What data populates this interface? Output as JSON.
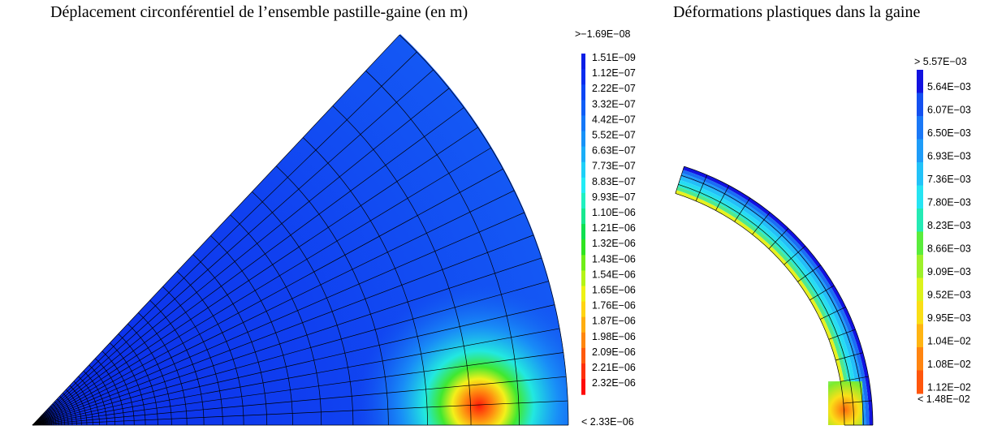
{
  "left_panel": {
    "title": "Déplacement circonférentiel de l’ensemble pastille-gaine (en m)",
    "legend": {
      "over_label": ">−1.69E−08",
      "under_label": "< 2.33E−06",
      "entries": [
        {
          "label": "1.51E−09",
          "color": "#0a1ee6"
        },
        {
          "label": "1.12E−07",
          "color": "#0a2df0"
        },
        {
          "label": "2.22E−07",
          "color": "#0d46f5"
        },
        {
          "label": "3.32E−07",
          "color": "#105ef7"
        },
        {
          "label": "4.42E−07",
          "color": "#1478f8"
        },
        {
          "label": "5.52E−07",
          "color": "#1792f8"
        },
        {
          "label": "6.63E−07",
          "color": "#1aaef8"
        },
        {
          "label": "7.73E−07",
          "color": "#1ed0f8"
        },
        {
          "label": "8.83E−07",
          "color": "#22ecf6"
        },
        {
          "label": "9.93E−07",
          "color": "#20f0c0"
        },
        {
          "label": "1.10E−06",
          "color": "#18e890"
        },
        {
          "label": "1.21E−06",
          "color": "#10e050"
        },
        {
          "label": "1.32E−06",
          "color": "#30e420"
        },
        {
          "label": "1.43E−06",
          "color": "#70ee18"
        },
        {
          "label": "1.54E−06",
          "color": "#b4f416"
        },
        {
          "label": "1.65E−06",
          "color": "#eef214"
        },
        {
          "label": "1.76E−06",
          "color": "#ffd412"
        },
        {
          "label": "1.87E−06",
          "color": "#ffae10"
        },
        {
          "label": "1.98E−06",
          "color": "#ff860e"
        },
        {
          "label": "2.09E−06",
          "color": "#ff5a0c"
        },
        {
          "label": "2.21E−06",
          "color": "#ff300a"
        },
        {
          "label": "2.32E−06",
          "color": "#ff0a08"
        }
      ]
    }
  },
  "right_panel": {
    "title": "Déformations plastiques dans la gaine",
    "legend": {
      "over_label": "> 5.57E−03",
      "under_label": "< 1.48E−02",
      "entries": [
        {
          "label": "5.64E−03",
          "color": "#1212e0"
        },
        {
          "label": "6.07E−03",
          "color": "#1450f0"
        },
        {
          "label": "6.50E−03",
          "color": "#1a78f6"
        },
        {
          "label": "6.93E−03",
          "color": "#1e9cf8"
        },
        {
          "label": "7.36E−03",
          "color": "#22c2f8"
        },
        {
          "label": "7.80E−03",
          "color": "#26e4f2"
        },
        {
          "label": "8.23E−03",
          "color": "#24eab4"
        },
        {
          "label": "8.66E−03",
          "color": "#5aec3c"
        },
        {
          "label": "9.09E−03",
          "color": "#9ef02a"
        },
        {
          "label": "9.52E−03",
          "color": "#dcf21c"
        },
        {
          "label": "9.95E−03",
          "color": "#fade16"
        },
        {
          "label": "1.04E−02",
          "color": "#ffb412"
        },
        {
          "label": "1.08E−02",
          "color": "#ff8410"
        },
        {
          "label": "1.12E−02",
          "color": "#ff560c"
        }
      ]
    }
  }
}
